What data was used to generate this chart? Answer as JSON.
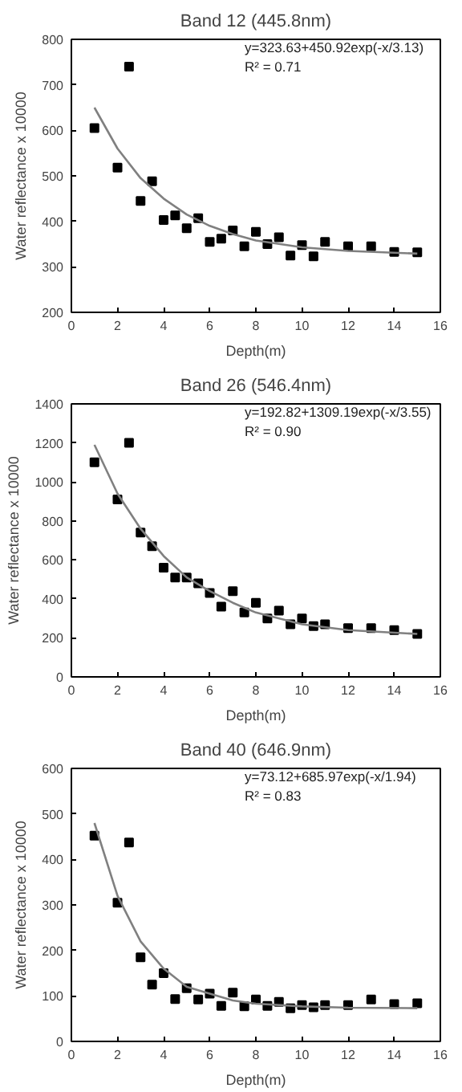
{
  "chart_data": [
    {
      "type": "scatter",
      "title": "Band 12 (445.8nm)",
      "xlabel": "Depth(m)",
      "ylabel": "Water reflectance x 10000",
      "annotations": [
        "y=323.63+450.92exp(-x/3.13)",
        "R² = 0.71"
      ],
      "xlim": [
        0,
        16
      ],
      "xticks": [
        0,
        2,
        4,
        6,
        8,
        10,
        12,
        14,
        16
      ],
      "ylim": [
        200,
        800
      ],
      "yticks": [
        200,
        300,
        400,
        500,
        600,
        700,
        800
      ],
      "grid": false,
      "series": [
        {
          "marker": "square",
          "color": "#000000",
          "x": [
            1,
            2,
            2.5,
            3,
            3.5,
            4,
            4.5,
            5,
            5.5,
            6,
            6.5,
            7,
            7.5,
            8,
            8.5,
            9,
            9.5,
            10,
            10.5,
            11,
            12,
            13,
            14,
            15
          ],
          "values": [
            605,
            518,
            740,
            445,
            488,
            403,
            413,
            385,
            407,
            355,
            362,
            380,
            345,
            377,
            350,
            365,
            325,
            348,
            323,
            355,
            345,
            345,
            333,
            332
          ]
        },
        {
          "type": "line",
          "color": "#808080",
          "x": [
            1,
            2,
            3,
            4,
            5,
            6,
            7,
            8,
            10,
            12,
            15
          ],
          "values": [
            650,
            560,
            495,
            450,
            415,
            390,
            372,
            358,
            343,
            335,
            329
          ]
        }
      ]
    },
    {
      "type": "scatter",
      "title": "Band 26 (546.4nm)",
      "xlabel": "Depth(m)",
      "ylabel": "Water reflectance x 10000",
      "annotations": [
        "y=192.82+1309.19exp(-x/3.55)",
        "R² = 0.90"
      ],
      "xlim": [
        0,
        16
      ],
      "xticks": [
        0,
        2,
        4,
        6,
        8,
        10,
        12,
        14,
        16
      ],
      "ylim": [
        0,
        1400
      ],
      "yticks": [
        0,
        200,
        400,
        600,
        800,
        1000,
        1200,
        1400
      ],
      "grid": false,
      "series": [
        {
          "marker": "square",
          "color": "#000000",
          "x": [
            1,
            2,
            2.5,
            3,
            3.5,
            4,
            4.5,
            5,
            5.5,
            6,
            6.5,
            7,
            7.5,
            8,
            8.5,
            9,
            9.5,
            10,
            10.5,
            11,
            12,
            13,
            14,
            15
          ],
          "values": [
            1100,
            910,
            1200,
            740,
            670,
            560,
            510,
            510,
            480,
            430,
            360,
            440,
            330,
            380,
            300,
            340,
            270,
            300,
            260,
            270,
            250,
            250,
            240,
            220
          ]
        },
        {
          "type": "line",
          "color": "#808080",
          "x": [
            1,
            2,
            3,
            4,
            5,
            6,
            7,
            8,
            10,
            12,
            15
          ],
          "values": [
            1190,
            940,
            760,
            620,
            510,
            440,
            380,
            330,
            270,
            240,
            220
          ]
        }
      ]
    },
    {
      "type": "scatter",
      "title": "Band 40 (646.9nm)",
      "xlabel": "Depth(m)",
      "ylabel": "Water reflectance x 10000",
      "annotations": [
        "y=73.12+685.97exp(-x/1.94)",
        "R² = 0.83"
      ],
      "xlim": [
        0,
        16
      ],
      "xticks": [
        0,
        2,
        4,
        6,
        8,
        10,
        12,
        14,
        16
      ],
      "ylim": [
        0,
        600
      ],
      "yticks": [
        0,
        100,
        200,
        300,
        400,
        500,
        600
      ],
      "grid": false,
      "series": [
        {
          "marker": "square",
          "color": "#000000",
          "x": [
            1,
            2,
            2.5,
            3,
            3.5,
            4,
            4.5,
            5,
            5.5,
            6,
            6.5,
            7,
            7.5,
            8,
            8.5,
            9,
            9.5,
            10,
            10.5,
            11,
            12,
            13,
            14,
            15
          ],
          "values": [
            452,
            305,
            437,
            185,
            125,
            150,
            93,
            117,
            92,
            105,
            78,
            107,
            77,
            92,
            78,
            87,
            73,
            80,
            75,
            80,
            80,
            92,
            82,
            84
          ]
        },
        {
          "type": "line",
          "color": "#808080",
          "x": [
            1,
            2,
            3,
            4,
            5,
            6,
            7,
            8,
            10,
            12,
            15
          ],
          "values": [
            480,
            320,
            220,
            160,
            120,
            105,
            90,
            83,
            77,
            74,
            73
          ]
        }
      ]
    }
  ]
}
